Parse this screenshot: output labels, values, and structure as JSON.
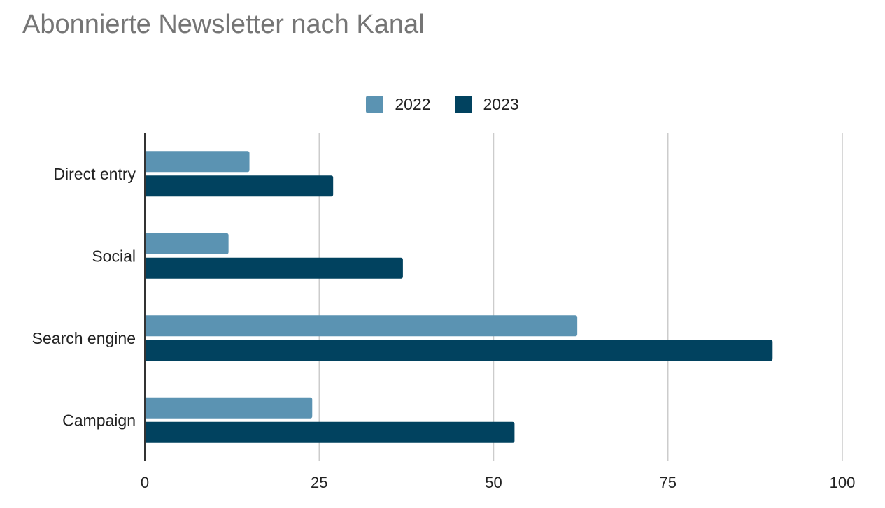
{
  "chart_data": {
    "type": "bar",
    "orientation": "horizontal",
    "title": "Abonnierte Newsletter nach Kanal",
    "xlabel": "",
    "ylabel": "",
    "categories": [
      "Direct entry",
      "Social",
      "Search engine",
      "Campaign"
    ],
    "series": [
      {
        "name": "2022",
        "values": [
          15,
          12,
          62,
          24
        ],
        "color": "#5b93b2"
      },
      {
        "name": "2023",
        "values": [
          27,
          37,
          90,
          53
        ],
        "color": "#01425f"
      }
    ],
    "xlim": [
      0,
      100
    ],
    "xticks": [
      0,
      25,
      50,
      75,
      100
    ],
    "xtick_labels": [
      "0",
      "25",
      "50",
      "75",
      "100"
    ],
    "grid": true,
    "legend_position": "top-center"
  }
}
